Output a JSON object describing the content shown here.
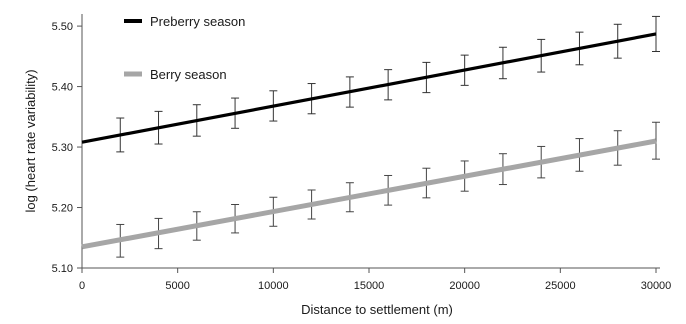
{
  "chart_data": {
    "type": "line",
    "title": "",
    "xlabel": "Distance to settlement (m)",
    "ylabel": "log (heart rate variability)",
    "xlim": [
      0,
      30000
    ],
    "ylim": [
      5.1,
      5.52
    ],
    "xticks": [
      0,
      5000,
      10000,
      15000,
      20000,
      25000,
      30000
    ],
    "xtick_labels": [
      "0",
      "5000",
      "10000",
      "15000",
      "20000",
      "25000",
      "30000"
    ],
    "yticks": [
      5.1,
      5.2,
      5.3,
      5.4,
      5.5
    ],
    "ytick_labels": [
      "5.10",
      "5.20",
      "5.30",
      "5.40",
      "5.50"
    ],
    "grid": false,
    "legend_position": "top-left",
    "x": [
      2000,
      4000,
      6000,
      8000,
      10000,
      12000,
      14000,
      16000,
      18000,
      20000,
      22000,
      24000,
      26000,
      28000,
      30000
    ],
    "series": [
      {
        "name": "Preberry season",
        "color": "#000000",
        "line": {
          "x_start": 0,
          "y_start": 5.308,
          "x_end": 30000,
          "y_end": 5.487
        },
        "values": [
          5.32,
          5.332,
          5.344,
          5.356,
          5.368,
          5.38,
          5.391,
          5.403,
          5.415,
          5.427,
          5.439,
          5.451,
          5.463,
          5.475,
          5.487
        ],
        "error_low": [
          5.292,
          5.305,
          5.318,
          5.331,
          5.343,
          5.355,
          5.366,
          5.378,
          5.39,
          5.402,
          5.413,
          5.424,
          5.436,
          5.447,
          5.458
        ],
        "error_high": [
          5.348,
          5.359,
          5.37,
          5.381,
          5.393,
          5.405,
          5.416,
          5.428,
          5.44,
          5.452,
          5.465,
          5.478,
          5.49,
          5.503,
          5.516
        ]
      },
      {
        "name": "Berry season",
        "color": "#a6a6a6",
        "line": {
          "x_start": 0,
          "y_start": 5.135,
          "x_end": 30000,
          "y_end": 5.31
        },
        "values": [
          5.147,
          5.158,
          5.17,
          5.182,
          5.193,
          5.205,
          5.217,
          5.228,
          5.24,
          5.252,
          5.263,
          5.275,
          5.287,
          5.298,
          5.31
        ],
        "error_low": [
          5.118,
          5.132,
          5.146,
          5.158,
          5.169,
          5.181,
          5.193,
          5.204,
          5.216,
          5.227,
          5.238,
          5.249,
          5.26,
          5.27,
          5.28
        ],
        "error_high": [
          5.172,
          5.182,
          5.193,
          5.205,
          5.217,
          5.229,
          5.241,
          5.253,
          5.265,
          5.277,
          5.289,
          5.301,
          5.314,
          5.327,
          5.341
        ]
      }
    ]
  }
}
